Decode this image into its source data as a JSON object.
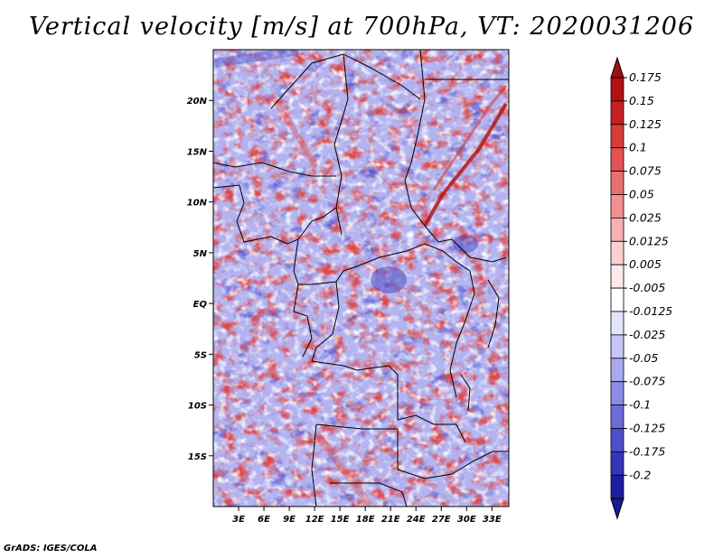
{
  "title": "Vertical velocity [m/s] at 700hPa, VT: 2020031206",
  "credit": "GrADS: IGES/COLA",
  "chart_data": {
    "type": "heatmap",
    "title": "Vertical velocity [m/s] at 700hPa, VT: 2020031206",
    "variable": "Vertical velocity",
    "units": "m/s",
    "level": "700hPa",
    "valid_time": "2020031206",
    "lon_range": [
      0,
      35
    ],
    "lat_range": [
      -20,
      25
    ],
    "x_ticks": [
      {
        "value": 3,
        "label": "3E"
      },
      {
        "value": 6,
        "label": "6E"
      },
      {
        "value": 9,
        "label": "9E"
      },
      {
        "value": 12,
        "label": "12E"
      },
      {
        "value": 15,
        "label": "15E"
      },
      {
        "value": 18,
        "label": "18E"
      },
      {
        "value": 21,
        "label": "21E"
      },
      {
        "value": 24,
        "label": "24E"
      },
      {
        "value": 27,
        "label": "27E"
      },
      {
        "value": 30,
        "label": "30E"
      },
      {
        "value": 33,
        "label": "33E"
      }
    ],
    "y_ticks": [
      {
        "value": 20,
        "label": "20N"
      },
      {
        "value": 15,
        "label": "15N"
      },
      {
        "value": 10,
        "label": "10N"
      },
      {
        "value": 5,
        "label": "5N"
      },
      {
        "value": 0,
        "label": "EQ"
      },
      {
        "value": -5,
        "label": "5S"
      },
      {
        "value": -10,
        "label": "10S"
      },
      {
        "value": -15,
        "label": "15S"
      }
    ],
    "colorbar": {
      "levels": [
        {
          "label": "0.175",
          "color": "#b31015"
        },
        {
          "label": "0.15",
          "color": "#c81e24"
        },
        {
          "label": "0.125",
          "color": "#d93a3a"
        },
        {
          "label": "0.1",
          "color": "#e35353"
        },
        {
          "label": "0.075",
          "color": "#ea7070"
        },
        {
          "label": "0.05",
          "color": "#f29090"
        },
        {
          "label": "0.025",
          "color": "#f8b0b0"
        },
        {
          "label": "0.0125",
          "color": "#fcd0d0"
        },
        {
          "label": "0.005",
          "color": "#fde9e9"
        },
        {
          "label": "-0.005",
          "color": "#ffffff"
        },
        {
          "label": "-0.0125",
          "color": "#e3e3fb"
        },
        {
          "label": "-0.025",
          "color": "#c6c6f5"
        },
        {
          "label": "-0.05",
          "color": "#a9a9ef"
        },
        {
          "label": "-0.075",
          "color": "#8c8ce6"
        },
        {
          "label": "-0.1",
          "color": "#6d6dd9"
        },
        {
          "label": "-0.125",
          "color": "#4f4fcb"
        },
        {
          "label": "-0.175",
          "color": "#3535ba"
        },
        {
          "label": "-0.2",
          "color": "#1e1ea3"
        }
      ],
      "top_arrow_color": "#a01010",
      "bottom_arrow_color": "#1a1a9a"
    }
  }
}
